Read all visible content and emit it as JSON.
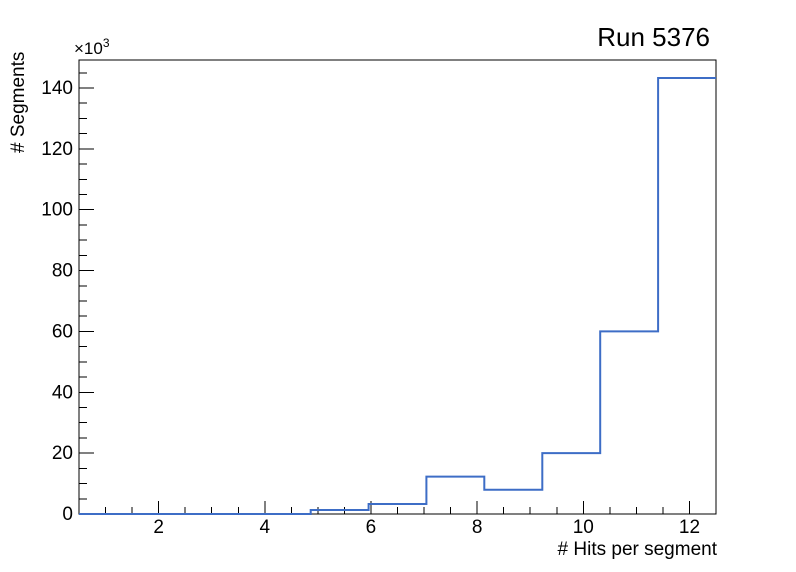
{
  "figure": {
    "background": "#ffffff"
  },
  "chart_data": {
    "type": "bar",
    "variant": "step-histogram-outline",
    "title": "Run 5376",
    "xlabel": "# Hits per segment",
    "ylabel": "# Segments",
    "y_axis_multiplier": {
      "base": "×10",
      "exp": "3"
    },
    "x_range": [
      0.5,
      12.5
    ],
    "y_range": [
      0,
      149200
    ],
    "n_bins": 11,
    "bin_edges": [
      0.5,
      1.591,
      2.682,
      3.773,
      4.864,
      5.955,
      7.045,
      8.136,
      9.227,
      10.318,
      11.409,
      12.5
    ],
    "values": [
      0,
      0,
      0,
      0,
      1300,
      3300,
      12300,
      8000,
      20000,
      60000,
      143300
    ],
    "x_major_ticks": [
      2,
      4,
      6,
      8,
      10,
      12
    ],
    "x_tick_labels": [
      "2",
      "4",
      "6",
      "8",
      "10",
      "12"
    ],
    "x_minor_tick_step": 0.5,
    "y_major_ticks": [
      0,
      20000,
      40000,
      60000,
      80000,
      100000,
      120000,
      140000
    ],
    "y_tick_labels": [
      "0",
      "20",
      "40",
      "60",
      "80",
      "100",
      "120",
      "140"
    ],
    "y_minor_tick_step": 5000,
    "grid": false,
    "legend": null,
    "line_color": "#3d6dc6",
    "frame_color": "#000000",
    "text_color": "#000000"
  }
}
